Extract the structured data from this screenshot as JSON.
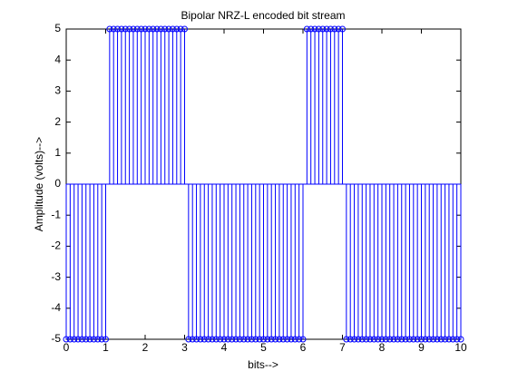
{
  "chart_data": {
    "type": "stem",
    "title": "Bipolar NRZ-L encoded bit stream",
    "x_label": "bits-->",
    "y_label": "Amplitude (volts)-->",
    "x": [
      0,
      0.1,
      0.2,
      0.3,
      0.4,
      0.5,
      0.6,
      0.7,
      0.8,
      0.9,
      1,
      1.1,
      1.2,
      1.3,
      1.4,
      1.5,
      1.6,
      1.7,
      1.8,
      1.9,
      2,
      2.1,
      2.2,
      2.3,
      2.4,
      2.5,
      2.6,
      2.7,
      2.8,
      2.9,
      3,
      3.1,
      3.2,
      3.3,
      3.4,
      3.5,
      3.6,
      3.7,
      3.8,
      3.9,
      4,
      4.1,
      4.2,
      4.3,
      4.4,
      4.5,
      4.6,
      4.7,
      4.8,
      4.9,
      5,
      5.1,
      5.2,
      5.3,
      5.4,
      5.5,
      5.6,
      5.7,
      5.8,
      5.9,
      6,
      6.1,
      6.2,
      6.3,
      6.4,
      6.5,
      6.6,
      6.7,
      6.8,
      6.9,
      7,
      7.1,
      7.2,
      7.3,
      7.4,
      7.5,
      7.6,
      7.7,
      7.8,
      7.9,
      8,
      8.1,
      8.2,
      8.3,
      8.4,
      8.5,
      8.6,
      8.7,
      8.8,
      8.9,
      9,
      9.1,
      9.2,
      9.3,
      9.4,
      9.5,
      9.6,
      9.7,
      9.8,
      9.9,
      10
    ],
    "values": [
      -5,
      -5,
      -5,
      -5,
      -5,
      -5,
      -5,
      -5,
      -5,
      -5,
      -5,
      5,
      5,
      5,
      5,
      5,
      5,
      5,
      5,
      5,
      5,
      5,
      5,
      5,
      5,
      5,
      5,
      5,
      5,
      5,
      5,
      -5,
      -5,
      -5,
      -5,
      -5,
      -5,
      -5,
      -5,
      -5,
      -5,
      -5,
      -5,
      -5,
      -5,
      -5,
      -5,
      -5,
      -5,
      -5,
      -5,
      -5,
      -5,
      -5,
      -5,
      -5,
      -5,
      -5,
      -5,
      -5,
      -5,
      5,
      5,
      5,
      5,
      5,
      5,
      5,
      5,
      5,
      5,
      -5,
      -5,
      -5,
      -5,
      -5,
      -5,
      -5,
      -5,
      -5,
      -5,
      -5,
      -5,
      -5,
      -5,
      -5,
      -5,
      -5,
      -5,
      -5,
      -5,
      -5,
      -5,
      -5,
      -5,
      -5,
      -5,
      -5,
      -5,
      -5,
      -5
    ],
    "color": "#0000ff",
    "xlim": [
      0,
      10
    ],
    "xticks": [
      0,
      1,
      2,
      3,
      4,
      5,
      6,
      7,
      8,
      9,
      10
    ],
    "ylim": [
      -5,
      5
    ],
    "yticks": [
      -5,
      -4,
      -3,
      -2,
      -1,
      0,
      1,
      2,
      3,
      4,
      5
    ],
    "grid": false
  }
}
